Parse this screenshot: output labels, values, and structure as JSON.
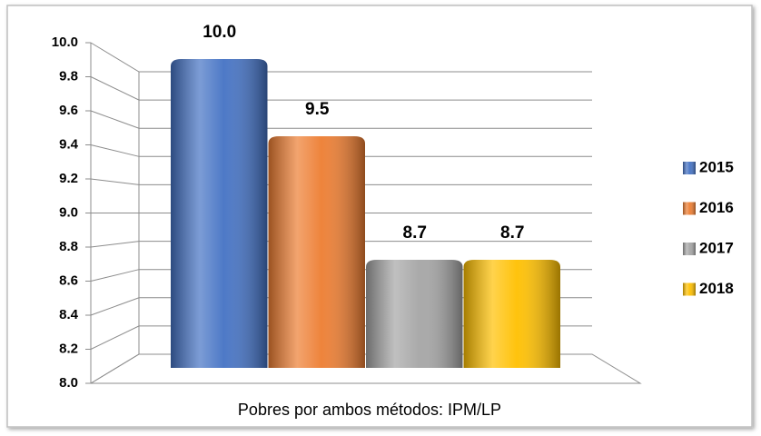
{
  "chart_data": {
    "type": "bar",
    "categories": [
      "Pobres por ambos métodos: IPM/LP"
    ],
    "series": [
      {
        "name": "2015",
        "color": "#4472c4",
        "values": [
          10.0
        ],
        "value_labels": [
          "10.0"
        ]
      },
      {
        "name": "2016",
        "color": "#ed7d31",
        "values": [
          9.5
        ],
        "value_labels": [
          "9.5"
        ]
      },
      {
        "name": "2017",
        "color": "#a5a5a5",
        "values": [
          8.7
        ],
        "value_labels": [
          "8.7"
        ]
      },
      {
        "name": "2018",
        "color": "#ffc000",
        "values": [
          8.7
        ],
        "value_labels": [
          "8.7"
        ]
      }
    ],
    "ylim": [
      8.0,
      10.0
    ],
    "yticks": [
      {
        "value": 8.0,
        "label": "8.0"
      },
      8.2,
      8.4,
      8.6,
      8.8,
      {
        "value": 9.0,
        "label": "9.0"
      },
      9.2,
      9.4,
      9.6,
      9.8,
      {
        "value": 10.0,
        "label": "10.0"
      }
    ],
    "grid": true,
    "legend": "right"
  }
}
